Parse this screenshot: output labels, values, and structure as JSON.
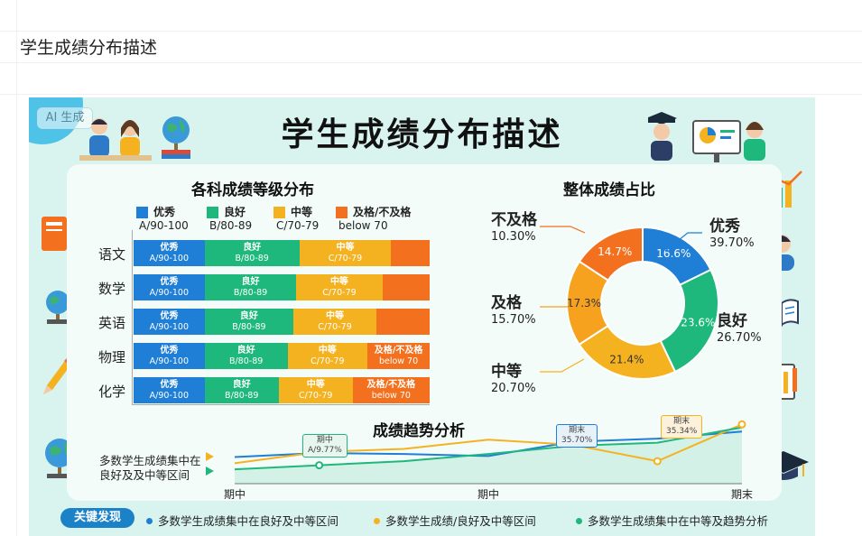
{
  "doc_title": "学生成绩分布描述",
  "ai_badge": "AI 生成",
  "main_title": "学生成绩分布描述",
  "bar_section": {
    "title": "各科成绩等级分布",
    "legend": [
      {
        "name": "优秀",
        "range": "A/90-100",
        "color": "#1f7ed6"
      },
      {
        "name": "良好",
        "range": "B/80-89",
        "color": "#1fb87c"
      },
      {
        "name": "中等",
        "range": "C/70-79",
        "color": "#f5b220"
      },
      {
        "name": "及格/不及格",
        "range": "below 70",
        "color": "#f2701e"
      }
    ]
  },
  "chart_data": [
    {
      "type": "bar",
      "orientation": "horizontal-stacked",
      "title": "各科成绩等级分布",
      "categories": [
        "语文",
        "数学",
        "英语",
        "物理",
        "化学"
      ],
      "series": [
        {
          "name": "优秀",
          "values": [
            24,
            24,
            24,
            24,
            24
          ]
        },
        {
          "name": "良好",
          "values": [
            32,
            31,
            30,
            28,
            25
          ]
        },
        {
          "name": "中等",
          "values": [
            31,
            29,
            28,
            27,
            25
          ]
        },
        {
          "name": "及格/不及格",
          "values": [
            13,
            16,
            18,
            21,
            26
          ]
        }
      ],
      "segment_labels": [
        [
          [
            "优秀",
            "A/90-100"
          ],
          [
            "良好",
            "B/80-89"
          ],
          [
            "中等",
            "C/70-79"
          ],
          [
            "",
            ""
          ]
        ],
        [
          [
            "优秀",
            "A/90-100"
          ],
          [
            "良好",
            "B/80-89"
          ],
          [
            "中等",
            "C/70-79"
          ],
          [
            "",
            ""
          ]
        ],
        [
          [
            "优秀",
            "A/90-100"
          ],
          [
            "良好",
            "B/80-89"
          ],
          [
            "中等",
            "C/70-79"
          ],
          [
            "",
            ""
          ]
        ],
        [
          [
            "优秀",
            "A/90-100"
          ],
          [
            "良好",
            "B/80-89"
          ],
          [
            "中等",
            "C/70-79"
          ],
          [
            "及格/不及格",
            "below 70"
          ]
        ],
        [
          [
            "优秀",
            "A/90-100"
          ],
          [
            "良好",
            "B/80-89"
          ],
          [
            "中等",
            "C/70-79"
          ],
          [
            "及格/不及格",
            "below 70"
          ]
        ]
      ]
    },
    {
      "type": "pie",
      "title": "整体成绩占比",
      "slices": [
        {
          "name": "优秀",
          "value": 16.6,
          "label": "16.6%",
          "outer_name": "优秀",
          "outer_pct": "39.70%",
          "color": "#1f7ed6"
        },
        {
          "name": "良好",
          "value": 23.6,
          "label": "23.6%",
          "outer_name": "良好",
          "outer_pct": "26.70%",
          "color": "#1fb87c"
        },
        {
          "name": "中等",
          "value": 21.4,
          "label": "21.4%",
          "outer_name": "中等",
          "outer_pct": "20.70%",
          "color": "#f5b220"
        },
        {
          "name": "及格",
          "value": 17.3,
          "label": "17.3%",
          "outer_name": "及格",
          "outer_pct": "15.70%",
          "color": "#f6a21f"
        },
        {
          "name": "不及格",
          "value": 14.7,
          "label": "14.7%",
          "outer_name": "不及格",
          "outer_pct": "10.30%",
          "color": "#f2701e"
        }
      ]
    },
    {
      "type": "line",
      "title": "成绩趋势分析",
      "x_ticks": [
        "期中",
        "期中",
        "期末"
      ],
      "series": [
        {
          "color": "#1f7ed6",
          "values": [
            26,
            30,
            29,
            27,
            41,
            44,
            51
          ]
        },
        {
          "color": "#f5b220",
          "values": [
            20,
            31,
            34,
            43,
            38,
            22,
            58
          ]
        },
        {
          "color": "#1fb87c",
          "values": [
            14,
            18,
            22,
            29,
            37,
            40,
            55
          ]
        }
      ],
      "callouts": [
        {
          "line1": "期中",
          "line2": "A/9.77%",
          "color": "#1fb87c"
        },
        {
          "line1": "期末",
          "line2": "35.70%",
          "color": "#1f7ed6"
        },
        {
          "line1": "期末",
          "line2": "35.34%",
          "color": "#f5b220"
        }
      ]
    }
  ],
  "donut_section": {
    "title": "整体成绩占比"
  },
  "trend_section": {
    "title": "成绩趋势分析",
    "side_text_1": "多数学生成绩集中在",
    "side_text_2": "良好及及中等区间"
  },
  "findings": {
    "label": "关键发现",
    "items": [
      {
        "text": "多数学生成绩集中在良好及中等区间",
        "color": "#1f7ed6"
      },
      {
        "text": "多数学生成绩/良好及中等区间",
        "color": "#f5b220"
      },
      {
        "text": "多数学生成绩集中在中等及趋势分析",
        "color": "#1fb87c"
      }
    ]
  }
}
